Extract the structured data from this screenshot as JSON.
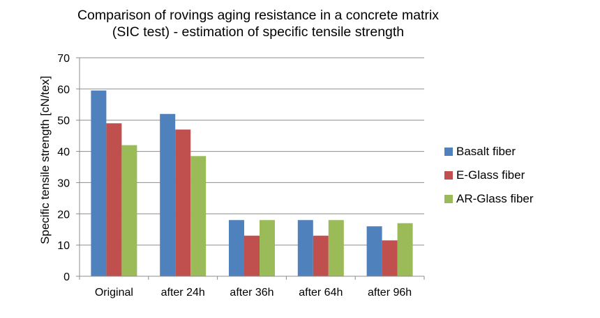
{
  "chart_data": {
    "type": "bar",
    "title": [
      "Comparison of rovings aging resistance in a concrete matrix",
      "(SIC test) - estimation of specific tensile strength"
    ],
    "xlabel": "",
    "ylabel": "Specific tensile strength [cN/tex]",
    "ylim": [
      0,
      70
    ],
    "yticks": [
      "0",
      "10",
      "20",
      "30",
      "40",
      "50",
      "60",
      "70"
    ],
    "categories": [
      "Original",
      "after 24h",
      "after 36h",
      "after 64h",
      "after 96h"
    ],
    "grid": true,
    "legend_position": "right",
    "series": [
      {
        "name": "Basalt fiber",
        "color": "#4f81bd",
        "values": [
          59.5,
          52,
          18,
          18,
          16
        ]
      },
      {
        "name": "E-Glass fiber",
        "color": "#c0504d",
        "values": [
          49,
          47,
          13,
          13,
          11.5
        ]
      },
      {
        "name": "AR-Glass fiber",
        "color": "#9bbb59",
        "values": [
          42,
          38.5,
          18,
          18,
          17
        ]
      }
    ]
  }
}
